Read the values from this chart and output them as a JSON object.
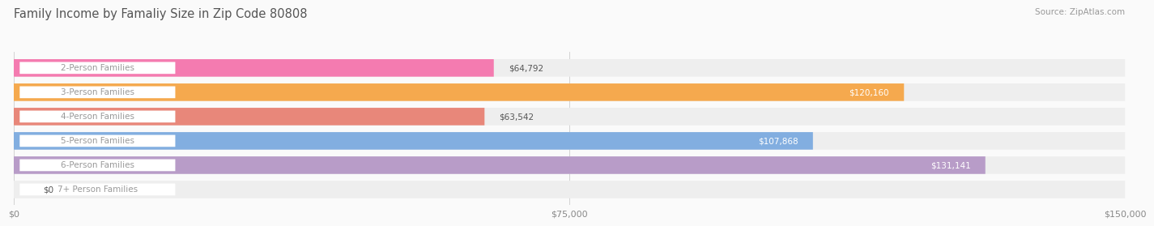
{
  "title": "Family Income by Famaliy Size in Zip Code 80808",
  "source": "Source: ZipAtlas.com",
  "categories": [
    "2-Person Families",
    "3-Person Families",
    "4-Person Families",
    "5-Person Families",
    "6-Person Families",
    "7+ Person Families"
  ],
  "values": [
    64792,
    120160,
    63542,
    107868,
    131141,
    0
  ],
  "max_value": 150000,
  "bar_colors": [
    "#F47BB0",
    "#F5A94E",
    "#E8877A",
    "#82AEE0",
    "#B89CC8",
    "#6DCECE"
  ],
  "bar_bg_color": "#EEEEEE",
  "label_bg_color": "#FFFFFF",
  "label_text_color": "#999999",
  "value_labels": [
    "$64,792",
    "$120,160",
    "$63,542",
    "$107,868",
    "$131,141",
    "$0"
  ],
  "value_label_colors": [
    "#555555",
    "#FFFFFF",
    "#555555",
    "#FFFFFF",
    "#FFFFFF",
    "#555555"
  ],
  "xtick_labels": [
    "$0",
    "$75,000",
    "$150,000"
  ],
  "xtick_values": [
    0,
    75000,
    150000
  ],
  "title_fontsize": 10.5,
  "source_fontsize": 7.5,
  "bar_label_fontsize": 7.5,
  "value_label_fontsize": 7.5,
  "tick_fontsize": 8,
  "background_color": "#FAFAFA"
}
